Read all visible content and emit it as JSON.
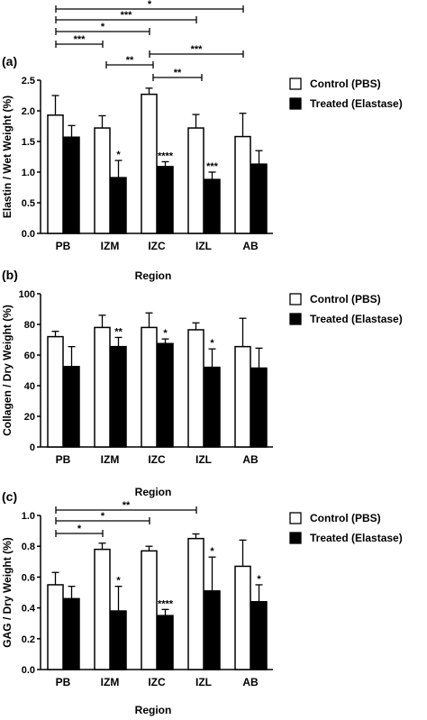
{
  "chart_data": [
    {
      "panel_label": "(a)",
      "type": "bar",
      "categories": [
        "PB",
        "IZM",
        "IZC",
        "IZL",
        "AB"
      ],
      "xlabel": "Region",
      "ylabel": "Elastin / Wet Weight (%)",
      "ylim": [
        0,
        2.5
      ],
      "yticks": [
        "0.0",
        "0.5",
        "1.0",
        "1.5",
        "2.0",
        "2.5"
      ],
      "series": [
        {
          "name": "Control (PBS)",
          "values": [
            1.93,
            1.72,
            2.27,
            1.72,
            1.58
          ],
          "errors": [
            0.32,
            0.2,
            0.1,
            0.22,
            0.38
          ],
          "color": "#ffffff"
        },
        {
          "name": "Treated (Elastase)",
          "values": [
            1.57,
            0.91,
            1.09,
            0.88,
            1.13
          ],
          "errors": [
            0.19,
            0.28,
            0.08,
            0.12,
            0.22
          ],
          "color": "#000000"
        }
      ],
      "bar_stars": [
        {
          "category": "IZM",
          "label": "*"
        },
        {
          "category": "IZC",
          "label": "****"
        },
        {
          "category": "IZL",
          "label": "***"
        }
      ],
      "brackets": [
        {
          "from": "PB",
          "to": "AB",
          "label": "*"
        },
        {
          "from": "PB",
          "to": "IZL",
          "label": "***"
        },
        {
          "from": "PB",
          "to": "IZC",
          "label": "*"
        },
        {
          "from": "PB",
          "to": "IZM",
          "label": "***"
        },
        {
          "from": "IZC",
          "to": "AB",
          "label": "***"
        },
        {
          "from": "IZM",
          "to": "IZC",
          "label": "**"
        },
        {
          "from": "IZC",
          "to": "IZL",
          "label": "**"
        }
      ],
      "legend": "right"
    },
    {
      "panel_label": "(b)",
      "type": "bar",
      "categories": [
        "PB",
        "IZM",
        "IZC",
        "IZL",
        "AB"
      ],
      "xlabel": "Region",
      "ylabel": "Collagen / Dry Weight (%)",
      "ylim": [
        0,
        100
      ],
      "yticks": [
        "0",
        "20",
        "40",
        "60",
        "80",
        "100"
      ],
      "series": [
        {
          "name": "Control (PBS)",
          "values": [
            72,
            78,
            78,
            76.5,
            65.5
          ],
          "errors": [
            3.5,
            8,
            9.5,
            4.5,
            18.5
          ],
          "color": "#ffffff"
        },
        {
          "name": "Treated (Elastase)",
          "values": [
            52.5,
            65.5,
            67.5,
            52,
            51.5
          ],
          "errors": [
            13,
            6,
            3,
            12,
            13
          ],
          "color": "#000000"
        }
      ],
      "bar_stars": [
        {
          "category": "IZM",
          "label": "**"
        },
        {
          "category": "IZC",
          "label": "*"
        },
        {
          "category": "IZL",
          "label": "*"
        }
      ],
      "brackets": [],
      "legend": "right"
    },
    {
      "panel_label": "(c)",
      "type": "bar",
      "categories": [
        "PB",
        "IZM",
        "IZC",
        "IZL",
        "AB"
      ],
      "xlabel": "Region",
      "ylabel": "GAG / Dry Weight (%)",
      "ylim": [
        0,
        1.0
      ],
      "yticks": [
        "0.0",
        "0.2",
        "0.4",
        "0.6",
        "0.8",
        "1.0"
      ],
      "series": [
        {
          "name": "Control (PBS)",
          "values": [
            0.55,
            0.78,
            0.77,
            0.85,
            0.67
          ],
          "errors": [
            0.08,
            0.04,
            0.03,
            0.03,
            0.17
          ],
          "color": "#ffffff"
        },
        {
          "name": "Treated (Elastase)",
          "values": [
            0.46,
            0.38,
            0.35,
            0.51,
            0.44
          ],
          "errors": [
            0.08,
            0.16,
            0.04,
            0.22,
            0.11
          ],
          "color": "#000000"
        }
      ],
      "bar_stars": [
        {
          "category": "IZM",
          "label": "*"
        },
        {
          "category": "IZC",
          "label": "****"
        },
        {
          "category": "IZL",
          "label": "*"
        },
        {
          "category": "AB",
          "label": "*"
        }
      ],
      "brackets": [
        {
          "from": "PB",
          "to": "IZL",
          "label": "**"
        },
        {
          "from": "PB",
          "to": "IZC",
          "label": "*"
        },
        {
          "from": "PB",
          "to": "IZM",
          "label": "*"
        }
      ],
      "legend": "right"
    }
  ]
}
